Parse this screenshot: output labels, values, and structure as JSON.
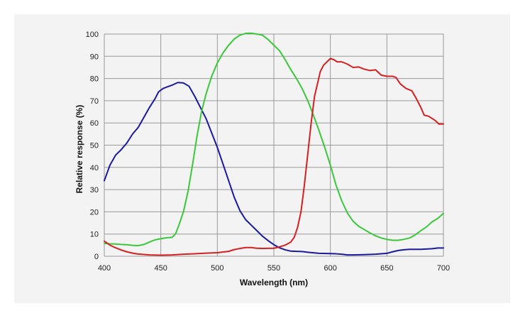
{
  "chart_data": {
    "type": "line",
    "xlabel": "Wavelength (nm)",
    "ylabel": "Relative response (%)",
    "xlim": [
      400,
      700
    ],
    "ylim": [
      0,
      100
    ],
    "x_ticks": [
      "400",
      "450",
      "500",
      "550",
      "600",
      "650",
      "700"
    ],
    "y_ticks": [
      "0",
      "10",
      "20",
      "30",
      "40",
      "50",
      "60",
      "70",
      "80",
      "90",
      "100"
    ],
    "grid": true,
    "legend": "none",
    "series": [
      {
        "color": "#1a1aa0",
        "points": [
          [
            400,
            34
          ],
          [
            405,
            41
          ],
          [
            410,
            45.5
          ],
          [
            415,
            48
          ],
          [
            420,
            51
          ],
          [
            425,
            55
          ],
          [
            430,
            58
          ],
          [
            435,
            62.5
          ],
          [
            440,
            67
          ],
          [
            445,
            71
          ],
          [
            448,
            74
          ],
          [
            452,
            75.5
          ],
          [
            456,
            76.3
          ],
          [
            460,
            77
          ],
          [
            465,
            78.2
          ],
          [
            470,
            78
          ],
          [
            475,
            76.5
          ],
          [
            480,
            72
          ],
          [
            485,
            67
          ],
          [
            490,
            62
          ],
          [
            495,
            55.5
          ],
          [
            500,
            49
          ],
          [
            505,
            41.5
          ],
          [
            510,
            34
          ],
          [
            515,
            26.5
          ],
          [
            520,
            20.5
          ],
          [
            525,
            16.5
          ],
          [
            530,
            14
          ],
          [
            535,
            11.5
          ],
          [
            540,
            9
          ],
          [
            545,
            7
          ],
          [
            550,
            5.2
          ],
          [
            555,
            3.8
          ],
          [
            560,
            2.9
          ],
          [
            565,
            2.3
          ],
          [
            570,
            2.2
          ],
          [
            575,
            2.1
          ],
          [
            580,
            1.8
          ],
          [
            590,
            1.3
          ],
          [
            600,
            1.2
          ],
          [
            605,
            1.1
          ],
          [
            610,
            0.9
          ],
          [
            615,
            0.6
          ],
          [
            620,
            0.6
          ],
          [
            630,
            0.7
          ],
          [
            640,
            0.9
          ],
          [
            650,
            1.3
          ],
          [
            655,
            2
          ],
          [
            660,
            2.6
          ],
          [
            665,
            2.9
          ],
          [
            670,
            3.1
          ],
          [
            680,
            3.1
          ],
          [
            690,
            3.4
          ],
          [
            695,
            3.7
          ],
          [
            700,
            3.7
          ]
        ]
      },
      {
        "color": "#3ac83a",
        "points": [
          [
            400,
            5.8
          ],
          [
            405,
            5.6
          ],
          [
            410,
            5.5
          ],
          [
            415,
            5.3
          ],
          [
            420,
            5.2
          ],
          [
            425,
            4.9
          ],
          [
            430,
            4.8
          ],
          [
            435,
            5.3
          ],
          [
            440,
            6.4
          ],
          [
            445,
            7.4
          ],
          [
            450,
            7.9
          ],
          [
            455,
            8.3
          ],
          [
            460,
            8.5
          ],
          [
            463,
            10
          ],
          [
            466,
            14
          ],
          [
            470,
            20
          ],
          [
            474,
            29
          ],
          [
            478,
            41
          ],
          [
            482,
            54
          ],
          [
            486,
            65
          ],
          [
            490,
            73
          ],
          [
            495,
            81
          ],
          [
            500,
            87
          ],
          [
            505,
            91.5
          ],
          [
            510,
            95
          ],
          [
            515,
            97.8
          ],
          [
            520,
            99.5
          ],
          [
            525,
            100.3
          ],
          [
            530,
            100.4
          ],
          [
            535,
            100
          ],
          [
            540,
            99.5
          ],
          [
            545,
            97.5
          ],
          [
            550,
            95
          ],
          [
            555,
            92.5
          ],
          [
            560,
            88.5
          ],
          [
            565,
            84
          ],
          [
            570,
            80
          ],
          [
            575,
            75.5
          ],
          [
            580,
            70
          ],
          [
            585,
            63.5
          ],
          [
            590,
            56.5
          ],
          [
            595,
            49
          ],
          [
            600,
            41
          ],
          [
            605,
            32
          ],
          [
            610,
            25
          ],
          [
            615,
            19.5
          ],
          [
            620,
            15.8
          ],
          [
            625,
            13.5
          ],
          [
            630,
            12
          ],
          [
            635,
            10.5
          ],
          [
            640,
            9.2
          ],
          [
            645,
            8.2
          ],
          [
            650,
            7.6
          ],
          [
            655,
            7.2
          ],
          [
            660,
            7.2
          ],
          [
            665,
            7.6
          ],
          [
            670,
            8.2
          ],
          [
            675,
            9.6
          ],
          [
            680,
            11.5
          ],
          [
            685,
            13.2
          ],
          [
            690,
            15.5
          ],
          [
            695,
            17
          ],
          [
            700,
            19.3
          ]
        ]
      },
      {
        "color": "#d42020",
        "points": [
          [
            400,
            6.8
          ],
          [
            405,
            5
          ],
          [
            410,
            3.8
          ],
          [
            415,
            2.8
          ],
          [
            420,
            2
          ],
          [
            425,
            1.4
          ],
          [
            430,
            1
          ],
          [
            435,
            0.8
          ],
          [
            440,
            0.6
          ],
          [
            450,
            0.5
          ],
          [
            460,
            0.6
          ],
          [
            470,
            0.9
          ],
          [
            480,
            1.1
          ],
          [
            490,
            1.4
          ],
          [
            500,
            1.6
          ],
          [
            510,
            2.2
          ],
          [
            515,
            3
          ],
          [
            520,
            3.5
          ],
          [
            525,
            3.9
          ],
          [
            530,
            3.9
          ],
          [
            535,
            3.6
          ],
          [
            540,
            3.5
          ],
          [
            550,
            3.6
          ],
          [
            555,
            4.2
          ],
          [
            560,
            5
          ],
          [
            565,
            6.4
          ],
          [
            568,
            8.5
          ],
          [
            571,
            13
          ],
          [
            574,
            20
          ],
          [
            577,
            32
          ],
          [
            580,
            46
          ],
          [
            583,
            60
          ],
          [
            586,
            72
          ],
          [
            589,
            78.5
          ],
          [
            591,
            83
          ],
          [
            594,
            86
          ],
          [
            597,
            87.5
          ],
          [
            600,
            89
          ],
          [
            603,
            88.5
          ],
          [
            606,
            87.5
          ],
          [
            610,
            87.5
          ],
          [
            615,
            86.5
          ],
          [
            620,
            85
          ],
          [
            625,
            85.2
          ],
          [
            630,
            84.2
          ],
          [
            635,
            83.6
          ],
          [
            640,
            83.9
          ],
          [
            645,
            81.5
          ],
          [
            650,
            81
          ],
          [
            655,
            81
          ],
          [
            658,
            80.5
          ],
          [
            662,
            77.5
          ],
          [
            667,
            75.5
          ],
          [
            672,
            74.5
          ],
          [
            676,
            71
          ],
          [
            680,
            67
          ],
          [
            683,
            63.5
          ],
          [
            687,
            63
          ],
          [
            690,
            62
          ],
          [
            693,
            61
          ],
          [
            696,
            59.5
          ],
          [
            700,
            59.5
          ]
        ]
      }
    ]
  }
}
